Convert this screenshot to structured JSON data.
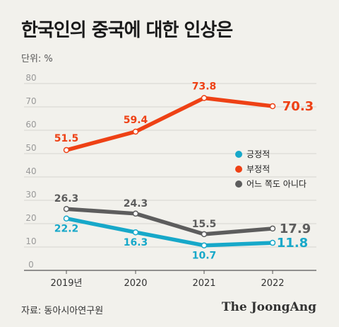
{
  "header": {
    "title": "한국인의 중국에 대한 인상은",
    "unit": "단위: %"
  },
  "footer": {
    "source": "자료: 동아시아연구원",
    "brand": "The JoongAng"
  },
  "colors": {
    "positive": "#17a8c9",
    "negative": "#ee4115",
    "neutral": "#5d5d5d"
  },
  "chart_data": {
    "type": "line",
    "categories": [
      "2019년",
      "2020",
      "2021",
      "2022"
    ],
    "ylim": [
      0,
      80
    ],
    "yticks": [
      "0",
      "10",
      "20",
      "30",
      "40",
      "50",
      "60",
      "70",
      "80"
    ],
    "grid": true,
    "legend_position": "right",
    "series": [
      {
        "name": "긍정적",
        "color": "#17a8c9",
        "values": [
          22.2,
          16.3,
          10.7,
          11.8
        ],
        "labels": [
          "22.2",
          "16.3",
          "10.7",
          "11.8"
        ]
      },
      {
        "name": "부정적",
        "color": "#ee4115",
        "values": [
          51.5,
          59.4,
          73.8,
          70.3
        ],
        "labels": [
          "51.5",
          "59.4",
          "73.8",
          "70.3"
        ]
      },
      {
        "name": "어느 쪽도 아니다",
        "color": "#5d5d5d",
        "values": [
          26.3,
          24.3,
          15.5,
          17.9
        ],
        "labels": [
          "26.3",
          "24.3",
          "15.5",
          "17.9"
        ]
      }
    ]
  }
}
